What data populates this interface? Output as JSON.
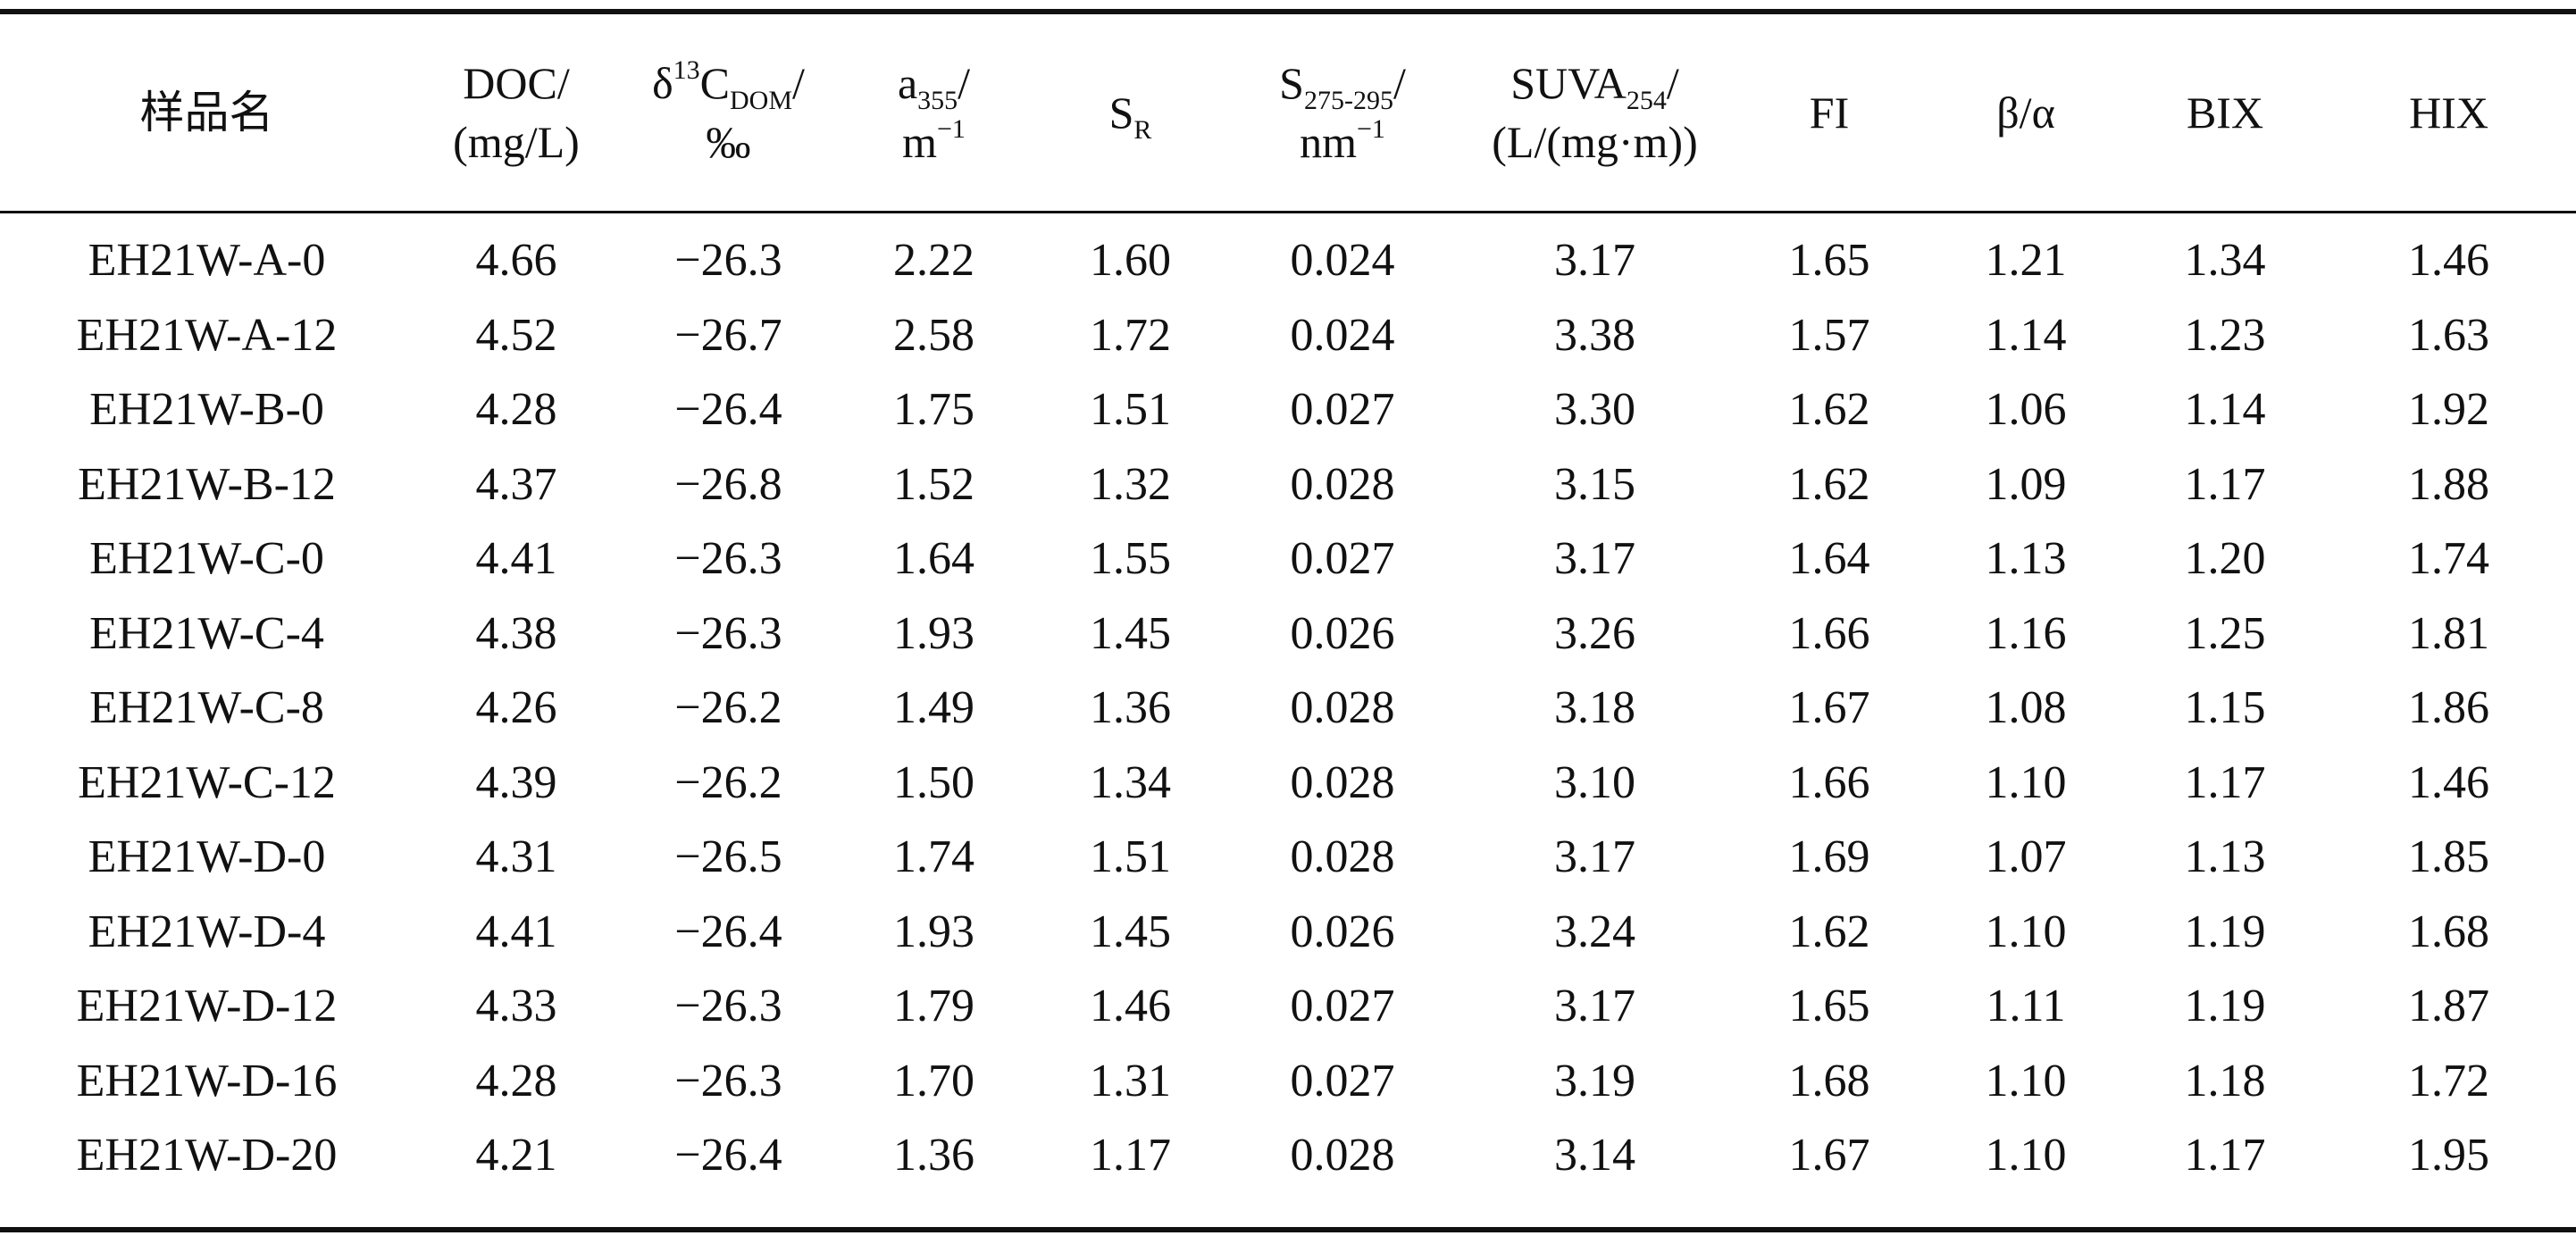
{
  "table": {
    "headers": {
      "sample": "样品名",
      "doc": {
        "name": "DOC/",
        "unit": "(mg/L)"
      },
      "delta": {
        "symbol": "δ",
        "sup": "13",
        "base": "C",
        "sub": "DOM",
        "slash": "/",
        "unit": "‰"
      },
      "a355": {
        "base": "a",
        "sub": "355",
        "slash": "/",
        "unit_base": "m",
        "unit_sup": "−1"
      },
      "sr": {
        "base": "S",
        "sub": "R"
      },
      "s275": {
        "base": "S",
        "sub": "275-295",
        "slash": "/",
        "unit_base": "nm",
        "unit_sup": "−1"
      },
      "suva": {
        "base": "SUVA",
        "sub": "254",
        "slash": "/",
        "unit": "(L/(mg·m))"
      },
      "fi": "FI",
      "ba": "β/α",
      "bix": "BIX",
      "hix": "HIX"
    },
    "rows": [
      {
        "sample": "EH21W-A-0",
        "doc": "4.66",
        "delta": "−26.3",
        "a355": "2.22",
        "sr": "1.60",
        "s275": "0.024",
        "suva": "3.17",
        "fi": "1.65",
        "ba": "1.21",
        "bix": "1.34",
        "hix": "1.46"
      },
      {
        "sample": "EH21W-A-12",
        "doc": "4.52",
        "delta": "−26.7",
        "a355": "2.58",
        "sr": "1.72",
        "s275": "0.024",
        "suva": "3.38",
        "fi": "1.57",
        "ba": "1.14",
        "bix": "1.23",
        "hix": "1.63"
      },
      {
        "sample": "EH21W-B-0",
        "doc": "4.28",
        "delta": "−26.4",
        "a355": "1.75",
        "sr": "1.51",
        "s275": "0.027",
        "suva": "3.30",
        "fi": "1.62",
        "ba": "1.06",
        "bix": "1.14",
        "hix": "1.92"
      },
      {
        "sample": "EH21W-B-12",
        "doc": "4.37",
        "delta": "−26.8",
        "a355": "1.52",
        "sr": "1.32",
        "s275": "0.028",
        "suva": "3.15",
        "fi": "1.62",
        "ba": "1.09",
        "bix": "1.17",
        "hix": "1.88"
      },
      {
        "sample": "EH21W-C-0",
        "doc": "4.41",
        "delta": "−26.3",
        "a355": "1.64",
        "sr": "1.55",
        "s275": "0.027",
        "suva": "3.17",
        "fi": "1.64",
        "ba": "1.13",
        "bix": "1.20",
        "hix": "1.74"
      },
      {
        "sample": "EH21W-C-4",
        "doc": "4.38",
        "delta": "−26.3",
        "a355": "1.93",
        "sr": "1.45",
        "s275": "0.026",
        "suva": "3.26",
        "fi": "1.66",
        "ba": "1.16",
        "bix": "1.25",
        "hix": "1.81"
      },
      {
        "sample": "EH21W-C-8",
        "doc": "4.26",
        "delta": "−26.2",
        "a355": "1.49",
        "sr": "1.36",
        "s275": "0.028",
        "suva": "3.18",
        "fi": "1.67",
        "ba": "1.08",
        "bix": "1.15",
        "hix": "1.86"
      },
      {
        "sample": "EH21W-C-12",
        "doc": "4.39",
        "delta": "−26.2",
        "a355": "1.50",
        "sr": "1.34",
        "s275": "0.028",
        "suva": "3.10",
        "fi": "1.66",
        "ba": "1.10",
        "bix": "1.17",
        "hix": "1.46"
      },
      {
        "sample": "EH21W-D-0",
        "doc": "4.31",
        "delta": "−26.5",
        "a355": "1.74",
        "sr": "1.51",
        "s275": "0.028",
        "suva": "3.17",
        "fi": "1.69",
        "ba": "1.07",
        "bix": "1.13",
        "hix": "1.85"
      },
      {
        "sample": "EH21W-D-4",
        "doc": "4.41",
        "delta": "−26.4",
        "a355": "1.93",
        "sr": "1.45",
        "s275": "0.026",
        "suva": "3.24",
        "fi": "1.62",
        "ba": "1.10",
        "bix": "1.19",
        "hix": "1.68"
      },
      {
        "sample": "EH21W-D-12",
        "doc": "4.33",
        "delta": "−26.3",
        "a355": "1.79",
        "sr": "1.46",
        "s275": "0.027",
        "suva": "3.17",
        "fi": "1.65",
        "ba": "1.11",
        "bix": "1.19",
        "hix": "1.87"
      },
      {
        "sample": "EH21W-D-16",
        "doc": "4.28",
        "delta": "−26.3",
        "a355": "1.70",
        "sr": "1.31",
        "s275": "0.027",
        "suva": "3.19",
        "fi": "1.68",
        "ba": "1.10",
        "bix": "1.18",
        "hix": "1.72"
      },
      {
        "sample": "EH21W-D-20",
        "doc": "4.21",
        "delta": "−26.4",
        "a355": "1.36",
        "sr": "1.17",
        "s275": "0.028",
        "suva": "3.14",
        "fi": "1.67",
        "ba": "1.10",
        "bix": "1.17",
        "hix": "1.95"
      }
    ]
  }
}
